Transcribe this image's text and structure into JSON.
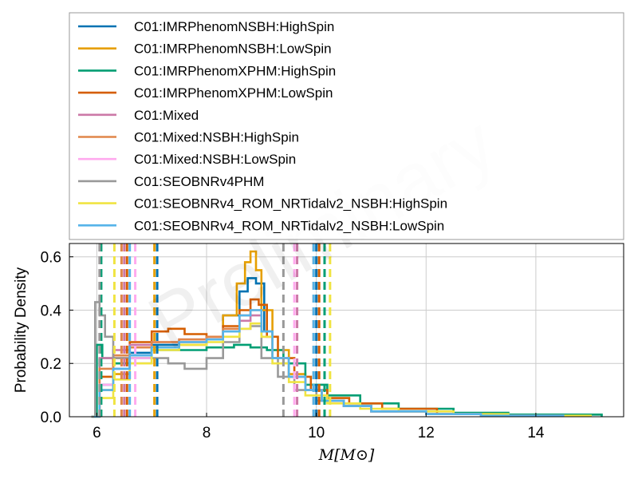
{
  "chart_data": {
    "type": "line",
    "title": "",
    "xlabel": "M[M⊙]",
    "ylabel": "Probability Density",
    "watermark": "Preliminary",
    "xlim": [
      5.5,
      15.6
    ],
    "ylim": [
      0,
      0.65
    ],
    "xticks": [
      6,
      8,
      10,
      12,
      14
    ],
    "yticks": [
      0.0,
      0.2,
      0.4,
      0.6
    ],
    "grid": true,
    "legend_placement": "top",
    "series": [
      {
        "name": "C01:IMRPhenomNSBH:HighSpin",
        "color": "#0072b2",
        "x": [
          5.95,
          6.05,
          6.3,
          6.6,
          7.0,
          7.5,
          8.0,
          8.3,
          8.6,
          8.75,
          8.9,
          9.05,
          9.2,
          9.5,
          9.8,
          10.1,
          10.5,
          11.0,
          12.0,
          13.0,
          14.0
        ],
        "y": [
          0,
          0.12,
          0.18,
          0.24,
          0.27,
          0.28,
          0.3,
          0.38,
          0.47,
          0.52,
          0.5,
          0.32,
          0.22,
          0.15,
          0.1,
          0.06,
          0.04,
          0.02,
          0.01,
          0.004,
          0
        ],
        "quantiles": [
          7.1,
          10.0
        ]
      },
      {
        "name": "C01:IMRPhenomNSBH:LowSpin",
        "color": "#e69f00",
        "x": [
          5.95,
          6.05,
          6.3,
          6.6,
          7.0,
          7.5,
          8.0,
          8.3,
          8.55,
          8.7,
          8.8,
          8.9,
          9.0,
          9.2,
          9.5,
          9.8,
          10.1,
          10.5,
          11.0,
          12.0,
          13.0,
          13.8
        ],
        "y": [
          0,
          0.1,
          0.16,
          0.22,
          0.26,
          0.27,
          0.3,
          0.38,
          0.5,
          0.58,
          0.62,
          0.55,
          0.4,
          0.25,
          0.16,
          0.1,
          0.06,
          0.04,
          0.02,
          0.01,
          0.004,
          0
        ],
        "quantiles": [
          7.05,
          10.05
        ]
      },
      {
        "name": "C01:IMRPhenomXPHM:HighSpin",
        "color": "#009e73",
        "x": [
          5.9,
          6.0,
          6.1,
          6.3,
          6.6,
          7.0,
          7.5,
          8.0,
          8.5,
          8.8,
          9.1,
          9.4,
          9.8,
          10.2,
          10.8,
          11.5,
          12.5,
          13.5,
          15.2
        ],
        "y": [
          0,
          0.27,
          0.22,
          0.2,
          0.22,
          0.25,
          0.25,
          0.26,
          0.27,
          0.26,
          0.25,
          0.2,
          0.12,
          0.08,
          0.05,
          0.03,
          0.015,
          0.008,
          0
        ],
        "quantiles": [
          6.08,
          10.15
        ]
      },
      {
        "name": "C01:IMRPhenomXPHM:LowSpin",
        "color": "#d55e00",
        "x": [
          5.95,
          6.05,
          6.3,
          6.6,
          7.0,
          7.3,
          7.6,
          8.0,
          8.3,
          8.6,
          8.8,
          8.95,
          9.1,
          9.3,
          9.6,
          9.9,
          10.2,
          10.6,
          11.2,
          12.2,
          13.2,
          14.0
        ],
        "y": [
          0,
          0.15,
          0.22,
          0.28,
          0.32,
          0.33,
          0.31,
          0.3,
          0.34,
          0.4,
          0.44,
          0.42,
          0.3,
          0.22,
          0.15,
          0.1,
          0.07,
          0.05,
          0.03,
          0.01,
          0.004,
          0
        ],
        "quantiles": [
          6.55,
          10.05
        ]
      },
      {
        "name": "C01:Mixed",
        "color": "#cc79a7",
        "x": [
          5.95,
          6.05,
          6.3,
          6.6,
          7.0,
          7.5,
          8.0,
          8.3,
          8.6,
          8.8,
          9.0,
          9.2,
          9.5,
          9.8,
          10.1,
          10.5,
          11.0,
          12.0,
          13.0,
          14.5
        ],
        "y": [
          0,
          0.22,
          0.25,
          0.27,
          0.28,
          0.29,
          0.3,
          0.32,
          0.36,
          0.38,
          0.3,
          0.22,
          0.15,
          0.1,
          0.06,
          0.04,
          0.02,
          0.01,
          0.004,
          0
        ],
        "quantiles": [
          6.5,
          9.65
        ]
      },
      {
        "name": "C01:Mixed:NSBH:HighSpin",
        "color": "#e0864a",
        "x": [
          5.95,
          6.05,
          6.3,
          6.6,
          7.0,
          7.5,
          8.0,
          8.3,
          8.6,
          8.8,
          9.0,
          9.2,
          9.5,
          9.8,
          10.1,
          10.5,
          11.0,
          12.0,
          13.0,
          14.5
        ],
        "y": [
          0,
          0.18,
          0.23,
          0.26,
          0.28,
          0.29,
          0.3,
          0.33,
          0.38,
          0.4,
          0.32,
          0.22,
          0.15,
          0.1,
          0.06,
          0.04,
          0.02,
          0.01,
          0.004,
          0
        ],
        "quantiles": [
          6.45,
          9.95
        ]
      },
      {
        "name": "C01:Mixed:NSBH:LowSpin",
        "color": "#ffaaee",
        "x": [
          5.95,
          6.05,
          6.3,
          6.6,
          7.0,
          7.5,
          8.0,
          8.3,
          8.6,
          8.8,
          9.0,
          9.2,
          9.5,
          9.8,
          10.1,
          10.5,
          11.0,
          12.0,
          13.0,
          14.5
        ],
        "y": [
          0,
          0.12,
          0.18,
          0.22,
          0.26,
          0.28,
          0.29,
          0.3,
          0.33,
          0.35,
          0.3,
          0.22,
          0.15,
          0.1,
          0.06,
          0.04,
          0.02,
          0.01,
          0.004,
          0
        ],
        "quantiles": [
          6.7,
          9.6
        ]
      },
      {
        "name": "C01:SEOBNRv4PHM",
        "color": "#999999",
        "x": [
          5.9,
          5.97,
          6.05,
          6.15,
          6.3,
          6.6,
          7.0,
          7.3,
          7.6,
          8.0,
          8.3,
          8.6,
          8.8,
          9.0,
          9.3,
          9.6,
          10.0,
          10.5,
          11.0,
          12.0,
          13.0,
          14.0
        ],
        "y": [
          0,
          0.43,
          0.38,
          0.3,
          0.22,
          0.2,
          0.22,
          0.2,
          0.18,
          0.22,
          0.28,
          0.33,
          0.34,
          0.22,
          0.15,
          0.1,
          0.06,
          0.04,
          0.02,
          0.01,
          0.004,
          0
        ],
        "quantiles": [
          6.05,
          9.4
        ]
      },
      {
        "name": "C01:SEOBNRv4_ROM_NRTidalv2_NSBH:HighSpin",
        "color": "#f0e442",
        "x": [
          5.95,
          6.05,
          6.3,
          6.6,
          7.0,
          7.5,
          8.0,
          8.3,
          8.6,
          8.8,
          9.0,
          9.2,
          9.5,
          9.8,
          10.2,
          10.8,
          11.5,
          12.5,
          13.5,
          15.0
        ],
        "y": [
          0,
          0.07,
          0.14,
          0.2,
          0.25,
          0.27,
          0.28,
          0.3,
          0.33,
          0.35,
          0.3,
          0.2,
          0.13,
          0.08,
          0.05,
          0.03,
          0.02,
          0.01,
          0.004,
          0
        ],
        "quantiles": [
          6.32,
          10.25
        ]
      },
      {
        "name": "C01:SEOBNRv4_ROM_NRTidalv2_NSBH:LowSpin",
        "color": "#56b4e9",
        "x": [
          5.95,
          6.05,
          6.3,
          6.6,
          7.0,
          7.5,
          8.0,
          8.3,
          8.6,
          8.8,
          9.0,
          9.2,
          9.5,
          9.8,
          10.1,
          10.5,
          11.0,
          12.0,
          13.0,
          14.5
        ],
        "y": [
          0,
          0.1,
          0.18,
          0.23,
          0.26,
          0.28,
          0.29,
          0.32,
          0.38,
          0.4,
          0.32,
          0.22,
          0.15,
          0.1,
          0.06,
          0.04,
          0.02,
          0.01,
          0.004,
          0
        ],
        "quantiles": [
          6.6,
          9.95
        ]
      }
    ]
  }
}
